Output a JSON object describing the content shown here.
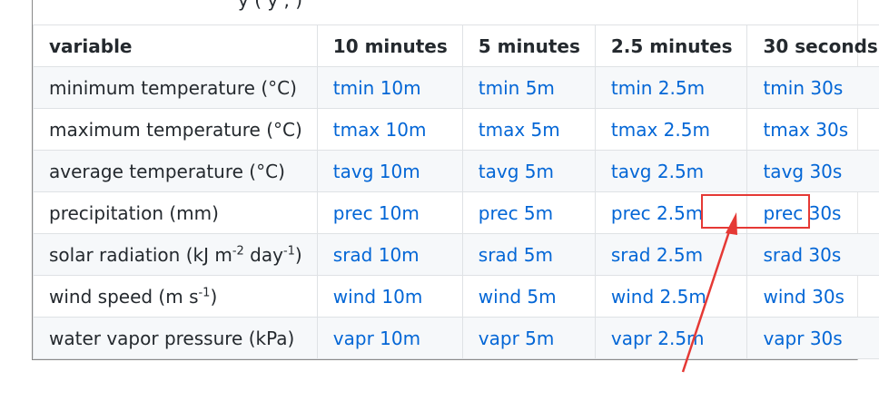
{
  "top_fragment": "y (         y    ,                 )",
  "table": {
    "headers": [
      "variable",
      "10 minutes",
      "5 minutes",
      "2.5 minutes",
      "30 seconds"
    ],
    "rows": [
      {
        "variable": "minimum temperature (°C)",
        "links": [
          "tmin 10m",
          "tmin 5m",
          "tmin 2.5m",
          "tmin 30s"
        ]
      },
      {
        "variable": "maximum temperature (°C)",
        "links": [
          "tmax 10m",
          "tmax 5m",
          "tmax 2.5m",
          "tmax 30s"
        ]
      },
      {
        "variable": "average temperature (°C)",
        "links": [
          "tavg 10m",
          "tavg 5m",
          "tavg 2.5m",
          "tavg 30s"
        ]
      },
      {
        "variable": "precipitation (mm)",
        "links": [
          "prec 10m",
          "prec 5m",
          "prec 2.5m",
          "prec 30s"
        ]
      },
      {
        "variable_parts": [
          "solar radiation (kJ m",
          "-2",
          " day",
          "-1",
          ")"
        ],
        "links": [
          "srad 10m",
          "srad 5m",
          "srad 2.5m",
          "srad 30s"
        ]
      },
      {
        "variable_parts": [
          "wind speed (m s",
          "-1",
          ")"
        ],
        "links": [
          "wind 10m",
          "wind 5m",
          "wind 2.5m",
          "wind 30s"
        ]
      },
      {
        "variable": "water vapor pressure (kPa)",
        "links": [
          "vapr 10m",
          "vapr 5m",
          "vapr 2.5m",
          "vapr 30s"
        ]
      }
    ]
  },
  "colors": {
    "link": "#0366d6",
    "text": "#24292e",
    "border": "#dfe2e5",
    "stripe": "#f6f8fa",
    "annotation": "#e53935"
  },
  "annotation": {
    "highlighted_cell": "prec 30s",
    "arrow": "red-arrow-icon"
  }
}
